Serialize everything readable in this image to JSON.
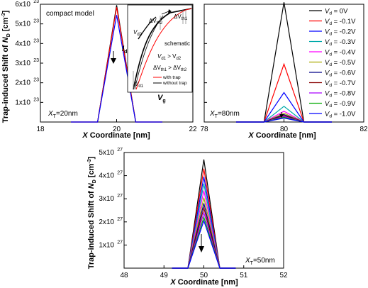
{
  "chart_data": [
    {
      "type": "line",
      "panel": "top-left",
      "xlabel_prefix": "X",
      "xlabel": " Coordinate [nm]",
      "ylabel_parts": [
        "Trap-induced Shift of ",
        "N",
        "D",
        " [cm",
        "-3",
        "]"
      ],
      "xlim": [
        18,
        22
      ],
      "ylim": [
        0,
        6e+23
      ],
      "x_ticks": [
        "18",
        "20",
        "22"
      ],
      "y_ticks": [
        {
          "mant": "1x10",
          "exp": "23",
          "value": 1e+23
        },
        {
          "mant": "2x10",
          "exp": "23",
          "value": 2e+23
        },
        {
          "mant": "3x10",
          "exp": "23",
          "value": 3e+23
        },
        {
          "mant": "4x10",
          "exp": "23",
          "value": 4e+23
        },
        {
          "mant": "5x10",
          "exp": "23",
          "value": 5e+23
        },
        {
          "mant": "6x10",
          "exp": "23",
          "value": 6e+23
        }
      ],
      "annotation_model": "compact model",
      "annotation_xt": {
        "main": "X",
        "sub": "T",
        "rest": "=20nm"
      },
      "x": [
        18.8,
        19.5,
        20.0,
        20.5,
        21.2
      ],
      "series": [
        {
          "color": "#000000",
          "values": [
            0,
            0,
            5.95e+23,
            0,
            0
          ]
        },
        {
          "color": "#ff0000",
          "values": [
            0,
            0,
            5.85e+23,
            0,
            0
          ]
        },
        {
          "color": "#0000ff",
          "values": [
            0,
            0,
            5.45e+23,
            0,
            0
          ]
        }
      ],
      "inset": {
        "labels": {
          "vd2": "V",
          "vd2_sub": "d2",
          "vd1": "V",
          "vd1_sub": "d1",
          "dvth2": "ΔV",
          "dvth2_sub": "th2",
          "dvth1": "ΔV",
          "dvth1_sub": "th1",
          "schematic": "schematic",
          "cond1": "V",
          "cond1_sub1": "d1",
          "cond1_mid": " > V",
          "cond1_sub2": "d2",
          "cond2": "ΔV",
          "cond2_sub1": "th1",
          "cond2_mid": " > ΔV",
          "cond2_sub2": "th2",
          "leg_with": "with trap",
          "leg_without": "without trap",
          "xaxis": "V",
          "xaxis_sub": "g",
          "yaxis": "I",
          "yaxis_sub": "d"
        },
        "colors": {
          "with_trap": "#ff0000",
          "without_trap": "#000000"
        }
      }
    },
    {
      "type": "line",
      "panel": "top-right",
      "xlabel_prefix": "X",
      "xlabel": " Coordinate [nm]",
      "xlim": [
        78,
        82
      ],
      "ylim": [
        0,
        6e+23
      ],
      "x_ticks": [
        "78",
        "80",
        "82"
      ],
      "annotation_xt": {
        "main": "X",
        "sub": "T",
        "rest": "=80nm"
      },
      "x": [
        78.8,
        79.5,
        80.0,
        80.5,
        81.2
      ],
      "series": [
        {
          "name": "V",
          "sub": "d",
          "rest": " = 0V",
          "color": "#000000",
          "values": [
            0,
            0,
            6.1e+23,
            0,
            0
          ]
        },
        {
          "name": "V",
          "sub": "d",
          "rest": " = -0.1V",
          "color": "#ff0000",
          "values": [
            0,
            0,
            2.95e+23,
            0,
            0
          ]
        },
        {
          "name": "V",
          "sub": "d",
          "rest": " = -0.2V",
          "color": "#0000ff",
          "values": [
            0,
            0,
            1.5e+23,
            0,
            0
          ]
        },
        {
          "name": "V",
          "sub": "d",
          "rest": " = -0.3V",
          "color": "#00aaaa",
          "values": [
            0,
            0,
            8e+22,
            0,
            0
          ]
        },
        {
          "name": "V",
          "sub": "d",
          "rest": " = -0.4V",
          "color": "#ff00ff",
          "values": [
            0,
            0,
            5.5e+22,
            0,
            0
          ]
        },
        {
          "name": "V",
          "sub": "d",
          "rest": " = -0.5V",
          "color": "#aaaa00",
          "values": [
            0,
            0,
            4.5e+22,
            0,
            0
          ]
        },
        {
          "name": "V",
          "sub": "d",
          "rest": " = -0.6V",
          "color": "#000088",
          "values": [
            0,
            0,
            3.8e+22,
            0,
            0
          ]
        },
        {
          "name": "V",
          "sub": "d",
          "rest": " = -0.7V",
          "color": "#880000",
          "values": [
            0,
            0,
            3.3e+22,
            0,
            0
          ]
        },
        {
          "name": "V",
          "sub": "d",
          "rest": " = -0.8V",
          "color": "#aa00ff",
          "values": [
            0,
            0,
            2.8e+22,
            0,
            0
          ]
        },
        {
          "name": "V",
          "sub": "d",
          "rest": " = -0.9V",
          "color": "#00aa00",
          "values": [
            0,
            0,
            2.4e+22,
            0,
            0
          ]
        },
        {
          "name": "V",
          "sub": "d",
          "rest": " = -1.0V",
          "color": "#0000ff",
          "values": [
            0,
            0,
            2e+22,
            0,
            0
          ]
        }
      ],
      "legend_position": "top-right"
    },
    {
      "type": "line",
      "panel": "bottom",
      "xlabel_prefix": "X",
      "xlabel": " Coordinate [nm]",
      "ylabel_parts": [
        "Trap-induced Shift of ",
        "N",
        "D",
        " [cm",
        "-3",
        "]"
      ],
      "xlim": [
        48,
        52
      ],
      "ylim": [
        0,
        5e+27
      ],
      "x_ticks": [
        "48",
        "49",
        "50",
        "51",
        "52"
      ],
      "y_ticks": [
        {
          "mant": "1x10",
          "exp": "27",
          "value": 1e+27
        },
        {
          "mant": "2x10",
          "exp": "27",
          "value": 2e+27
        },
        {
          "mant": "3x10",
          "exp": "27",
          "value": 3e+27
        },
        {
          "mant": "4x10",
          "exp": "27",
          "value": 4e+27
        },
        {
          "mant": "5x10",
          "exp": "27",
          "value": 5e+27
        }
      ],
      "annotation_xt": {
        "main": "X",
        "sub": "T",
        "rest": "=50nm"
      },
      "x": [
        49.2,
        49.6,
        50.0,
        50.4,
        50.8
      ],
      "series": [
        {
          "color": "#000000",
          "values": [
            0,
            0,
            4.7e+27,
            0,
            0
          ]
        },
        {
          "color": "#ff0000",
          "values": [
            0,
            0,
            4.3e+27,
            0,
            0
          ]
        },
        {
          "color": "#0000ff",
          "values": [
            0,
            0,
            3.95e+27,
            0,
            0
          ]
        },
        {
          "color": "#00aaaa",
          "values": [
            0,
            0,
            3.65e+27,
            0,
            0
          ]
        },
        {
          "color": "#ff00ff",
          "values": [
            0,
            0,
            3.35e+27,
            0,
            0
          ]
        },
        {
          "color": "#aaaa00",
          "values": [
            0,
            0,
            3.05e+27,
            0,
            0
          ]
        },
        {
          "color": "#000088",
          "values": [
            0,
            0,
            2.8e+27,
            0,
            0
          ]
        },
        {
          "color": "#880000",
          "values": [
            0,
            0,
            2.6e+27,
            0,
            0
          ]
        },
        {
          "color": "#aa00ff",
          "values": [
            0,
            0,
            2.4e+27,
            0,
            0
          ]
        },
        {
          "color": "#00aa00",
          "values": [
            0,
            0,
            2.2e+27,
            0,
            0
          ]
        },
        {
          "color": "#0000ff",
          "values": [
            0,
            0,
            2.05e+27,
            0,
            0
          ]
        }
      ]
    }
  ]
}
